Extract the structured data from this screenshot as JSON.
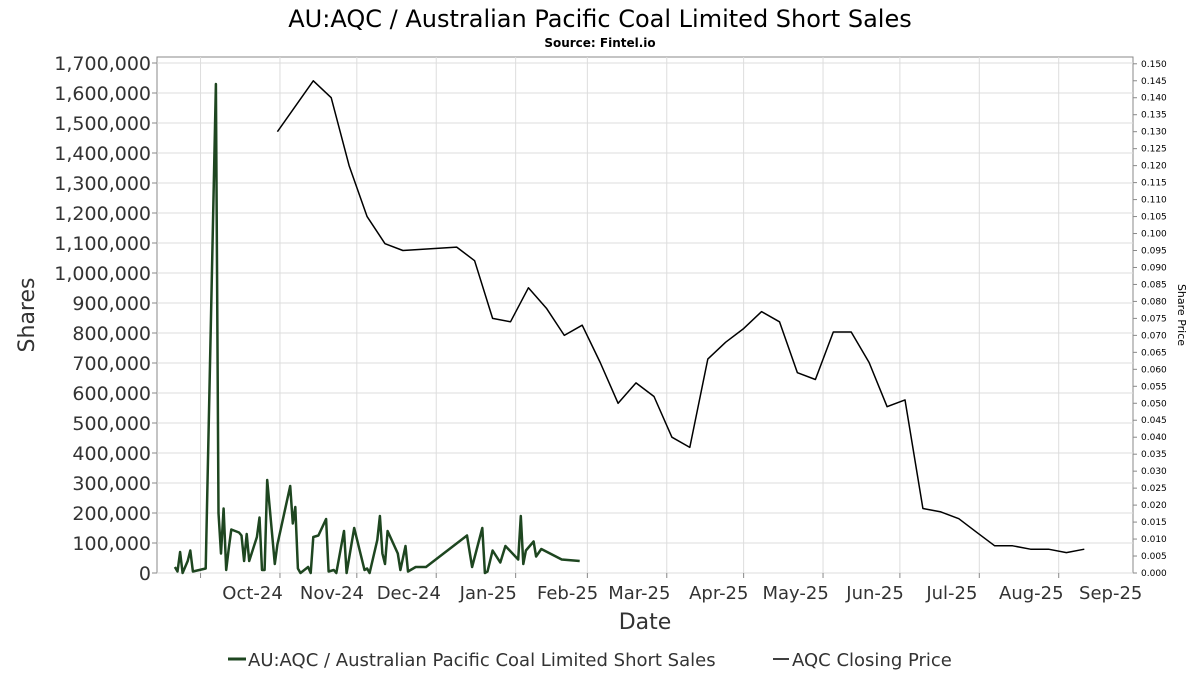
{
  "chart_data": {
    "type": "line",
    "title": "AU:AQC / Australian Pacific Coal Limited Short Sales",
    "subtitle": "Source: Fintel.io",
    "xlabel": "Date",
    "ylabel": "Shares",
    "y2label": "Share Price",
    "x_range": [
      "2024-09-14",
      "2025-09-30"
    ],
    "ylim": [
      0,
      1720000
    ],
    "y2lim": [
      0,
      0.152
    ],
    "y_ticks": [
      0,
      100000,
      200000,
      300000,
      400000,
      500000,
      600000,
      700000,
      800000,
      900000,
      1000000,
      1100000,
      1200000,
      1300000,
      1400000,
      1500000,
      1600000,
      1700000
    ],
    "y_tick_labels": [
      "0",
      "100,000",
      "200,000",
      "300,000",
      "400,000",
      "500,000",
      "600,000",
      "700,000",
      "800,000",
      "900,000",
      "1,000,000",
      "1,100,000",
      "1,200,000",
      "1,300,000",
      "1,400,000",
      "1,500,000",
      "1,600,000",
      "1,700,000"
    ],
    "y2_ticks": [
      0,
      0.005,
      0.01,
      0.015,
      0.02,
      0.025,
      0.03,
      0.035,
      0.04,
      0.045,
      0.05,
      0.055,
      0.06,
      0.065,
      0.07,
      0.075,
      0.08,
      0.085,
      0.09,
      0.095,
      0.1,
      0.105,
      0.11,
      0.115,
      0.12,
      0.125,
      0.13,
      0.135,
      0.14,
      0.145,
      0.15
    ],
    "y2_tick_labels": [
      "0.000",
      "0.005",
      "0.010",
      "0.015",
      "0.020",
      "0.025",
      "0.030",
      "0.035",
      "0.040",
      "0.045",
      "0.050",
      "0.055",
      "0.060",
      "0.065",
      "0.070",
      "0.075",
      "0.080",
      "0.085",
      "0.090",
      "0.095",
      "0.100",
      "0.105",
      "0.110",
      "0.115",
      "0.120",
      "0.125",
      "0.130",
      "0.135",
      "0.140",
      "0.145",
      "0.150"
    ],
    "x_ticks": [
      {
        "date": "2024-10-01",
        "label": "Oct-24"
      },
      {
        "date": "2024-11-01",
        "label": "Nov-24"
      },
      {
        "date": "2024-12-01",
        "label": "Dec-24"
      },
      {
        "date": "2025-01-01",
        "label": "Jan-25"
      },
      {
        "date": "2025-02-01",
        "label": "Feb-25"
      },
      {
        "date": "2025-03-01",
        "label": "Mar-25"
      },
      {
        "date": "2025-04-01",
        "label": "Apr-25"
      },
      {
        "date": "2025-05-01",
        "label": "May-25"
      },
      {
        "date": "2025-06-01",
        "label": "Jun-25"
      },
      {
        "date": "2025-07-01",
        "label": "Jul-25"
      },
      {
        "date": "2025-08-01",
        "label": "Aug-25"
      },
      {
        "date": "2025-09-01",
        "label": "Sep-25"
      }
    ],
    "grid": true,
    "legend_position": "bottom",
    "series": [
      {
        "name": "AU:AQC / Australian Pacific Coal Limited Short Sales",
        "axis": "left",
        "color": "#1e4620",
        "points": [
          [
            "2024-09-21",
            20000
          ],
          [
            "2024-09-22",
            5000
          ],
          [
            "2024-09-23",
            70000
          ],
          [
            "2024-09-24",
            0
          ],
          [
            "2024-09-26",
            40000
          ],
          [
            "2024-09-27",
            75000
          ],
          [
            "2024-09-28",
            5000
          ],
          [
            "2024-10-03",
            15000
          ],
          [
            "2024-10-07",
            1630000
          ],
          [
            "2024-10-08",
            200000
          ],
          [
            "2024-10-09",
            65000
          ],
          [
            "2024-10-10",
            215000
          ],
          [
            "2024-10-11",
            10000
          ],
          [
            "2024-10-12",
            80000
          ],
          [
            "2024-10-13",
            145000
          ],
          [
            "2024-10-16",
            135000
          ],
          [
            "2024-10-17",
            125000
          ],
          [
            "2024-10-18",
            40000
          ],
          [
            "2024-10-19",
            130000
          ],
          [
            "2024-10-20",
            40000
          ],
          [
            "2024-10-23",
            120000
          ],
          [
            "2024-10-24",
            185000
          ],
          [
            "2024-10-25",
            10000
          ],
          [
            "2024-10-26",
            10000
          ],
          [
            "2024-10-27",
            310000
          ],
          [
            "2024-10-30",
            30000
          ],
          [
            "2024-10-31",
            95000
          ],
          [
            "2024-11-05",
            290000
          ],
          [
            "2024-11-06",
            165000
          ],
          [
            "2024-11-07",
            220000
          ],
          [
            "2024-11-08",
            15000
          ],
          [
            "2024-11-09",
            0
          ],
          [
            "2024-11-12",
            20000
          ],
          [
            "2024-11-13",
            0
          ],
          [
            "2024-11-14",
            120000
          ],
          [
            "2024-11-16",
            125000
          ],
          [
            "2024-11-19",
            180000
          ],
          [
            "2024-11-20",
            5000
          ],
          [
            "2024-11-22",
            10000
          ],
          [
            "2024-11-23",
            0
          ],
          [
            "2024-11-26",
            140000
          ],
          [
            "2024-11-27",
            0
          ],
          [
            "2024-11-30",
            150000
          ],
          [
            "2024-12-04",
            10000
          ],
          [
            "2024-12-05",
            15000
          ],
          [
            "2024-12-06",
            0
          ],
          [
            "2024-12-09",
            110000
          ],
          [
            "2024-12-10",
            190000
          ],
          [
            "2024-12-11",
            65000
          ],
          [
            "2024-12-12",
            30000
          ],
          [
            "2024-12-13",
            140000
          ],
          [
            "2024-12-17",
            65000
          ],
          [
            "2024-12-18",
            10000
          ],
          [
            "2024-12-20",
            90000
          ],
          [
            "2024-12-21",
            5000
          ],
          [
            "2024-12-24",
            20000
          ],
          [
            "2024-12-28",
            20000
          ],
          [
            "2025-01-13",
            125000
          ],
          [
            "2025-01-15",
            20000
          ],
          [
            "2025-01-19",
            150000
          ],
          [
            "2025-01-20",
            0
          ],
          [
            "2025-01-21",
            5000
          ],
          [
            "2025-01-23",
            75000
          ],
          [
            "2025-01-26",
            35000
          ],
          [
            "2025-01-28",
            90000
          ],
          [
            "2025-02-02",
            45000
          ],
          [
            "2025-02-03",
            190000
          ],
          [
            "2025-02-04",
            30000
          ],
          [
            "2025-02-05",
            75000
          ],
          [
            "2025-02-08",
            105000
          ],
          [
            "2025-02-09",
            55000
          ],
          [
            "2025-02-11",
            80000
          ],
          [
            "2025-02-19",
            45000
          ],
          [
            "2025-02-26",
            40000
          ]
        ]
      },
      {
        "name": "AQC Closing Price",
        "axis": "right",
        "color": "#000000",
        "points": [
          [
            "2024-10-31",
            0.13
          ],
          [
            "2024-11-14",
            0.145
          ],
          [
            "2024-11-21",
            0.14
          ],
          [
            "2024-11-28",
            0.12
          ],
          [
            "2024-12-05",
            0.105
          ],
          [
            "2024-12-12",
            0.097
          ],
          [
            "2024-12-19",
            0.095
          ],
          [
            "2025-01-09",
            0.096
          ],
          [
            "2025-01-16",
            0.092
          ],
          [
            "2025-01-23",
            0.075
          ],
          [
            "2025-01-30",
            0.074
          ],
          [
            "2025-02-06",
            0.084
          ],
          [
            "2025-02-13",
            0.078
          ],
          [
            "2025-02-20",
            0.07
          ],
          [
            "2025-02-27",
            0.073
          ],
          [
            "2025-03-06",
            0.062
          ],
          [
            "2025-03-13",
            0.05
          ],
          [
            "2025-03-20",
            0.056
          ],
          [
            "2025-03-27",
            0.052
          ],
          [
            "2025-04-03",
            0.04
          ],
          [
            "2025-04-10",
            0.037
          ],
          [
            "2025-04-17",
            0.063
          ],
          [
            "2025-04-24",
            0.068
          ],
          [
            "2025-05-01",
            0.072
          ],
          [
            "2025-05-08",
            0.077
          ],
          [
            "2025-05-15",
            0.074
          ],
          [
            "2025-05-22",
            0.059
          ],
          [
            "2025-05-29",
            0.057
          ],
          [
            "2025-06-05",
            0.071
          ],
          [
            "2025-06-12",
            0.071
          ],
          [
            "2025-06-19",
            0.062
          ],
          [
            "2025-06-26",
            0.049
          ],
          [
            "2025-07-03",
            0.051
          ],
          [
            "2025-07-10",
            0.019
          ],
          [
            "2025-07-17",
            0.018
          ],
          [
            "2025-07-24",
            0.016
          ],
          [
            "2025-07-31",
            0.012
          ],
          [
            "2025-08-07",
            0.008
          ],
          [
            "2025-08-14",
            0.008
          ],
          [
            "2025-08-21",
            0.007
          ],
          [
            "2025-08-28",
            0.007
          ],
          [
            "2025-09-04",
            0.006
          ],
          [
            "2025-09-11",
            0.007
          ]
        ]
      }
    ]
  }
}
